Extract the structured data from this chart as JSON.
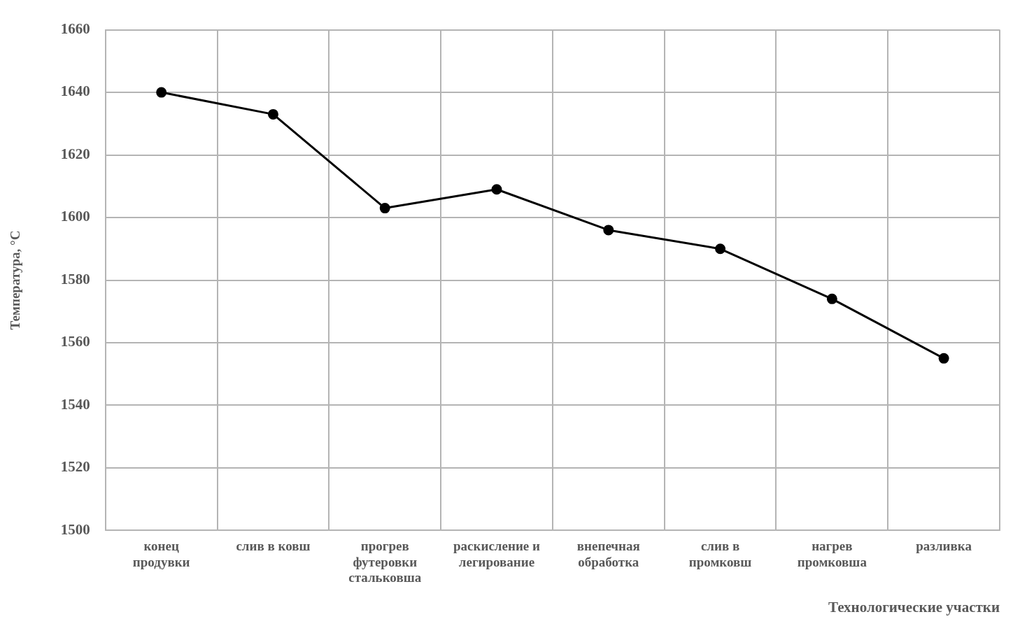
{
  "chart_data": {
    "type": "line",
    "xlabel": "Технологические участки",
    "ylabel": "Температура, °С",
    "categories": [
      [
        "конец",
        "продувки"
      ],
      [
        "слив в ковш"
      ],
      [
        "прогрев",
        "футеровки",
        "стальковша"
      ],
      [
        "раскисление и",
        "легирование"
      ],
      [
        "внепечная",
        "обработка"
      ],
      [
        "слив в",
        "промковш"
      ],
      [
        "нагрев",
        "промковша"
      ],
      [
        "разливка"
      ]
    ],
    "series": [
      {
        "color": "#000000",
        "values": [
          1640,
          1633,
          1603,
          1609,
          1596,
          1590,
          1574,
          1555
        ]
      }
    ],
    "ylim": [
      1500,
      1660
    ],
    "yticks": [
      1500,
      1520,
      1540,
      1560,
      1580,
      1600,
      1620,
      1640,
      1660
    ],
    "grid": true,
    "marker": "circle",
    "line_style": "solid",
    "legend": false
  }
}
